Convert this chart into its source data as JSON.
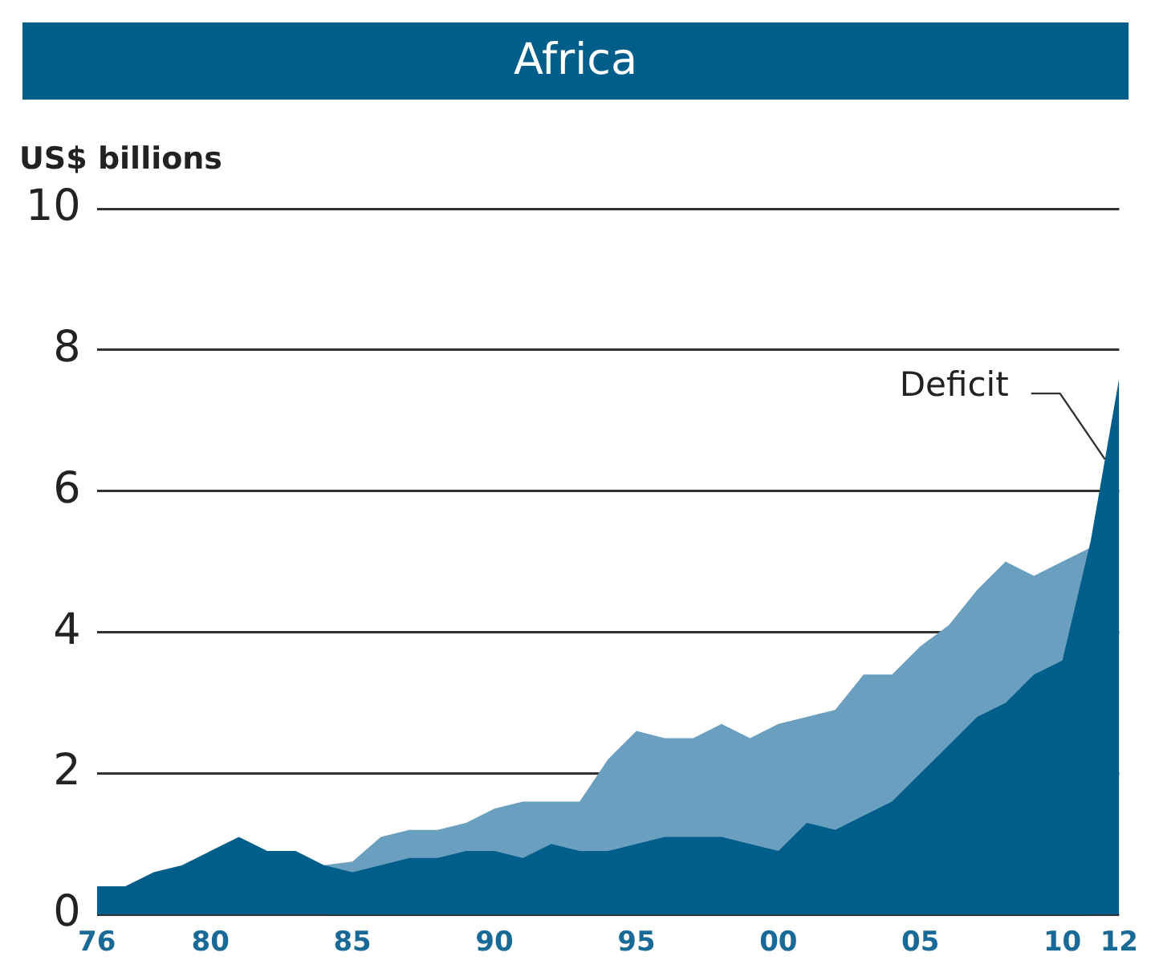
{
  "chart_data": {
    "type": "area",
    "title": "Africa",
    "ylabel": "US$ billions",
    "x": [
      1976,
      1977,
      1978,
      1979,
      1980,
      1981,
      1982,
      1983,
      1984,
      1985,
      1986,
      1987,
      1988,
      1989,
      1990,
      1991,
      1992,
      1993,
      1994,
      1995,
      1996,
      1997,
      1998,
      1999,
      2000,
      2001,
      2002,
      2003,
      2004,
      2005,
      2006,
      2007,
      2008,
      2009,
      2010,
      2011,
      2012
    ],
    "series": [
      {
        "color": "#005e8a",
        "values": [
          0.4,
          0.4,
          0.6,
          0.7,
          0.9,
          1.1,
          0.9,
          0.9,
          0.7,
          0.6,
          0.7,
          0.8,
          0.8,
          0.9,
          0.9,
          0.8,
          1.0,
          0.9,
          0.9,
          1.0,
          1.1,
          1.1,
          1.1,
          1.0,
          0.9,
          1.3,
          1.2,
          1.4,
          1.6,
          2.0,
          2.4,
          2.8,
          3.0,
          3.4,
          3.6,
          5.3,
          7.6
        ]
      },
      {
        "color": "#6a9fbf",
        "values": [
          null,
          null,
          null,
          null,
          null,
          null,
          null,
          null,
          0.7,
          0.75,
          1.1,
          1.2,
          1.2,
          1.3,
          1.5,
          1.6,
          1.6,
          1.6,
          2.2,
          2.6,
          2.5,
          2.5,
          2.7,
          2.5,
          2.7,
          2.8,
          2.9,
          3.4,
          3.4,
          3.8,
          4.1,
          4.6,
          5.0,
          4.8,
          5.0,
          5.2,
          null
        ]
      }
    ],
    "xlim": [
      1976,
      2012
    ],
    "xticks": [
      {
        "value": 1976,
        "label": "76"
      },
      {
        "value": 1980,
        "label": "80"
      },
      {
        "value": 1985,
        "label": "85"
      },
      {
        "value": 1990,
        "label": "90"
      },
      {
        "value": 1995,
        "label": "95"
      },
      {
        "value": 2000,
        "label": "00"
      },
      {
        "value": 2005,
        "label": "05"
      },
      {
        "value": 2010,
        "label": "10"
      },
      {
        "value": 2012,
        "label": "12"
      }
    ],
    "ylim": [
      0,
      10
    ],
    "yticks": [
      0,
      2,
      4,
      6,
      8,
      10
    ],
    "grid": "y",
    "annotations": [
      {
        "text": "Deficit",
        "x": 2011.5,
        "y": 6.45
      }
    ]
  }
}
